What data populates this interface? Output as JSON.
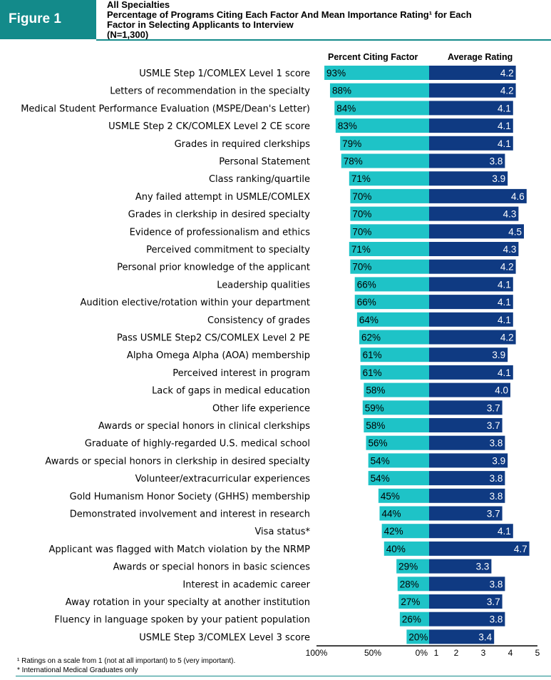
{
  "figure_label": "Figure 1",
  "header": {
    "line1": "All Specialties",
    "line2": "Percentage of Programs Citing Each Factor And Mean Importance Rating¹ for Each",
    "line3": "Factor in Selecting Applicants to Interview",
    "line4": "(N=1,300)"
  },
  "footnotes": {
    "note1": "¹ Ratings on a scale from 1 (not at all important) to 5 (very important).",
    "note2": "* International Medical Graduates only"
  },
  "colors": {
    "percent_bar": "#1ec3c7",
    "rating_bar": "#0f3a82",
    "accent": "#138a8a"
  },
  "chart_data": {
    "type": "bar",
    "categories": [
      "USMLE Step 1/COMLEX Level 1 score",
      "Letters of recommendation in the specialty",
      "Medical Student Performance Evaluation (MSPE/Dean's Letter)",
      "USMLE Step 2 CK/COMLEX Level 2 CE score",
      "Grades in required clerkships",
      "Personal Statement",
      "Class ranking/quartile",
      "Any failed attempt in USMLE/COMLEX",
      "Grades in clerkship in desired specialty",
      "Evidence of professionalism and ethics",
      "Perceived commitment to specialty",
      "Personal prior knowledge of the applicant",
      "Leadership qualities",
      "Audition elective/rotation within your department",
      "Consistency of grades",
      "Pass USMLE Step2 CS/COMLEX Level 2 PE",
      "Alpha Omega Alpha (AOA) membership",
      "Perceived interest in program",
      "Lack of gaps in medical education",
      "Other life experience",
      "Awards or special honors in clinical clerkships",
      "Graduate of highly-regarded U.S. medical school",
      "Awards or special honors in clerkship in desired specialty",
      "Volunteer/extracurricular experiences",
      "Gold Humanism Honor Society (GHHS) membership",
      "Demonstrated involvement and interest in research",
      "Visa status*",
      "Applicant was flagged with Match violation by the NRMP",
      "Awards or special honors in basic sciences",
      "Interest in academic career",
      "Away rotation in your specialty at another institution",
      "Fluency in language spoken by your patient population",
      "USMLE Step 3/COMLEX Level 3 score"
    ],
    "series": [
      {
        "name": "Percent Citing Factor",
        "values": [
          93,
          88,
          84,
          83,
          79,
          78,
          71,
          70,
          70,
          70,
          71,
          70,
          66,
          66,
          64,
          62,
          61,
          61,
          58,
          59,
          58,
          56,
          54,
          54,
          45,
          44,
          42,
          40,
          29,
          28,
          27,
          26,
          20
        ],
        "labels": [
          "93%",
          "88%",
          "84%",
          "83%",
          "79%",
          "78%",
          "71%",
          "70%",
          "70%",
          "70%",
          "71%",
          "70%",
          "66%",
          "66%",
          "64%",
          "62%",
          "61%",
          "61%",
          "58%",
          "59%",
          "58%",
          "56%",
          "54%",
          "54%",
          "45%",
          "44%",
          "42%",
          "40%",
          "29%",
          "28%",
          "27%",
          "26%",
          "20%"
        ]
      },
      {
        "name": "Average Rating",
        "values": [
          4.2,
          4.2,
          4.1,
          4.1,
          4.1,
          3.8,
          3.9,
          4.6,
          4.3,
          4.5,
          4.3,
          4.2,
          4.1,
          4.1,
          4.1,
          4.2,
          3.9,
          4.1,
          4.0,
          3.7,
          3.7,
          3.8,
          3.9,
          3.8,
          3.8,
          3.7,
          4.1,
          4.7,
          3.3,
          3.8,
          3.7,
          3.8,
          3.4
        ],
        "labels": [
          "4.2",
          "4.2",
          "4.1",
          "4.1",
          "4.1",
          "3.8",
          "3.9",
          "4.6",
          "4.3",
          "4.5",
          "4.3",
          "4.2",
          "4.1",
          "4.1",
          "4.1",
          "4.2",
          "3.9",
          "4.1",
          "4.0",
          "3.7",
          "3.7",
          "3.8",
          "3.9",
          "3.8",
          "3.8",
          "3.7",
          "4.1",
          "4.7",
          "3.3",
          "3.8",
          "3.7",
          "3.8",
          "3.4"
        ]
      }
    ],
    "percent_axis": {
      "range": [
        0,
        100
      ],
      "reversed": true,
      "ticks": [
        "100%",
        "50%",
        "0%"
      ]
    },
    "rating_axis": {
      "range": [
        1,
        5
      ],
      "ticks": [
        "1",
        "2",
        "3",
        "4",
        "5"
      ]
    },
    "legend": "top"
  }
}
